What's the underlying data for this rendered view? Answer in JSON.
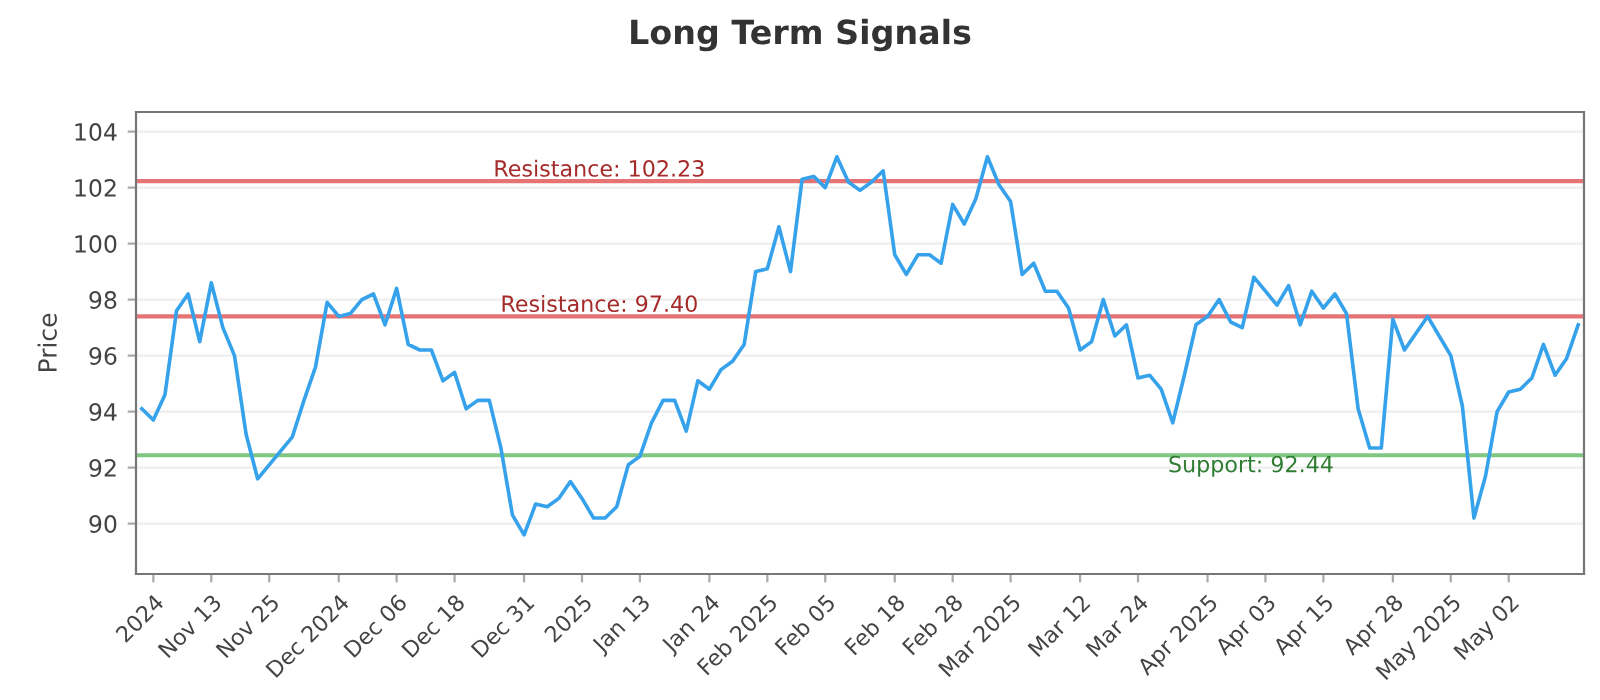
{
  "chart_data": {
    "type": "line",
    "title": "Long Term Signals",
    "ylabel": "Price",
    "categories": [
      null,
      "2024",
      null,
      null,
      null,
      null,
      "Nov 13",
      null,
      null,
      null,
      null,
      "Nov 25",
      null,
      null,
      null,
      null,
      null,
      "Dec 2024",
      null,
      null,
      null,
      null,
      "Dec 06",
      null,
      null,
      null,
      null,
      "Dec 18",
      null,
      null,
      null,
      null,
      null,
      "Dec 31",
      null,
      null,
      null,
      null,
      "2025",
      null,
      null,
      null,
      null,
      "Jan 13",
      null,
      null,
      null,
      null,
      null,
      "Jan 24",
      null,
      null,
      null,
      null,
      "Feb 2025",
      null,
      null,
      null,
      null,
      "Feb 05",
      null,
      null,
      null,
      null,
      null,
      "Feb 18",
      null,
      null,
      null,
      null,
      "Feb 28",
      null,
      null,
      null,
      null,
      "Mar 2025",
      null,
      null,
      null,
      null,
      null,
      "Mar 12",
      null,
      null,
      null,
      null,
      "Mar 24",
      null,
      null,
      null,
      null,
      null,
      "Apr 2025",
      null,
      null,
      null,
      null,
      "Apr 03",
      null,
      null,
      null,
      null,
      "Apr 15",
      null,
      null,
      null,
      null,
      null,
      "Apr 28",
      null,
      null,
      null,
      null,
      "May 2025",
      null,
      null,
      null,
      null,
      "May 02",
      null,
      null,
      null,
      null,
      null,
      null
    ],
    "series": [
      {
        "color": "#36a2eb",
        "values": [
          94.1,
          93.7,
          94.6,
          97.6,
          98.2,
          96.5,
          98.6,
          97.0,
          96.0,
          93.2,
          91.6,
          92.1,
          92.6,
          93.1,
          94.4,
          95.6,
          97.9,
          97.4,
          97.5,
          98.0,
          98.2,
          97.1,
          98.4,
          96.4,
          96.2,
          96.2,
          95.1,
          95.4,
          94.1,
          94.4,
          94.4,
          92.7,
          90.3,
          89.6,
          90.7,
          90.6,
          90.9,
          91.5,
          90.9,
          90.2,
          90.2,
          90.6,
          92.1,
          92.4,
          93.6,
          94.4,
          94.4,
          93.3,
          95.1,
          94.8,
          95.5,
          95.8,
          96.4,
          99.0,
          99.1,
          100.6,
          99.0,
          102.3,
          102.4,
          102.0,
          103.1,
          102.2,
          101.9,
          102.2,
          102.6,
          99.6,
          98.9,
          99.6,
          99.6,
          99.3,
          101.4,
          100.7,
          101.6,
          103.1,
          102.1,
          101.5,
          98.9,
          99.3,
          98.3,
          98.3,
          97.7,
          96.2,
          96.5,
          98.0,
          96.7,
          97.1,
          95.2,
          95.3,
          94.8,
          93.6,
          95.3,
          97.1,
          97.4,
          98.0,
          97.2,
          97.0,
          98.8,
          98.3,
          97.8,
          98.5,
          97.1,
          98.3,
          97.7,
          98.2,
          97.5,
          94.1,
          92.7,
          92.7,
          97.3,
          96.2,
          96.8,
          97.4,
          96.7,
          96.0,
          94.2,
          90.2,
          91.7,
          94.0,
          94.7,
          94.8,
          95.2,
          96.4,
          95.3,
          95.9,
          97.1
        ]
      }
    ],
    "ylim": [
      88.2,
      104.7
    ],
    "yticks": [
      90,
      92,
      94,
      96,
      98,
      100,
      102,
      104
    ],
    "grid": "y",
    "ref_lines": [
      {
        "axis": "y",
        "value": 102.23,
        "label": "Resistance: 102.23",
        "color": "#e57373"
      },
      {
        "axis": "y",
        "value": 97.4,
        "label": "Resistance: 97.40",
        "color": "#e57373"
      },
      {
        "axis": "y",
        "value": 92.44,
        "label": "Support: 92.44",
        "color": "#81c784"
      }
    ]
  }
}
